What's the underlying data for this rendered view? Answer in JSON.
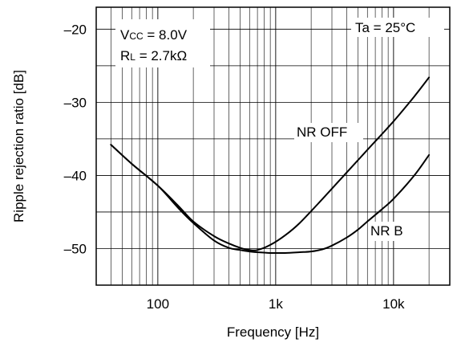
{
  "chart_data": {
    "type": "line",
    "title": "",
    "xlabel": "Frequency [Hz]",
    "ylabel": "Ripple rejection ratio [dB]",
    "xscale": "log",
    "xlim": [
      30,
      30000
    ],
    "ylim": [
      -55,
      -17
    ],
    "grid": true,
    "x_ticks": [
      {
        "value": 100,
        "label": "100"
      },
      {
        "value": 1000,
        "label": "1k"
      },
      {
        "value": 10000,
        "label": "10k"
      }
    ],
    "y_ticks": [
      {
        "value": -20,
        "label": "–20"
      },
      {
        "value": -30,
        "label": "–30"
      },
      {
        "value": -40,
        "label": "–40"
      },
      {
        "value": -50,
        "label": "–50"
      }
    ],
    "conditions": {
      "vcc_main": "V",
      "vcc_sub": "CC",
      "vcc_value": " = 8.0V",
      "rl_main": "R",
      "rl_sub": "L",
      "rl_value": " = 2.7kΩ",
      "ta": "Ta = 25°C"
    },
    "series": [
      {
        "name": "NR OFF",
        "x": [
          40,
          60,
          100,
          150,
          200,
          300,
          400,
          500,
          600,
          700,
          900,
          1200,
          1600,
          2500,
          4000,
          6000,
          10000,
          15000,
          20000
        ],
        "y": [
          -35.8,
          -38.4,
          -41.4,
          -44.2,
          -46.3,
          -48.3,
          -49.3,
          -49.9,
          -50.2,
          -50.2,
          -49.5,
          -48.2,
          -46.5,
          -43.2,
          -39.6,
          -36.5,
          -32.6,
          -29.2,
          -26.6
        ]
      },
      {
        "name": "NR B",
        "x": [
          40,
          60,
          100,
          150,
          200,
          300,
          400,
          500,
          600,
          700,
          900,
          1200,
          1600,
          2000,
          2500,
          3000,
          4000,
          5000,
          6000,
          8000,
          10000,
          15000,
          20000
        ],
        "y": [
          -35.8,
          -38.4,
          -41.4,
          -44.5,
          -46.5,
          -48.9,
          -49.9,
          -50.2,
          -50.4,
          -50.5,
          -50.6,
          -50.6,
          -50.5,
          -50.4,
          -50.1,
          -49.6,
          -48.5,
          -47.4,
          -46.3,
          -44.6,
          -43.2,
          -40.0,
          -37.2
        ]
      }
    ]
  }
}
